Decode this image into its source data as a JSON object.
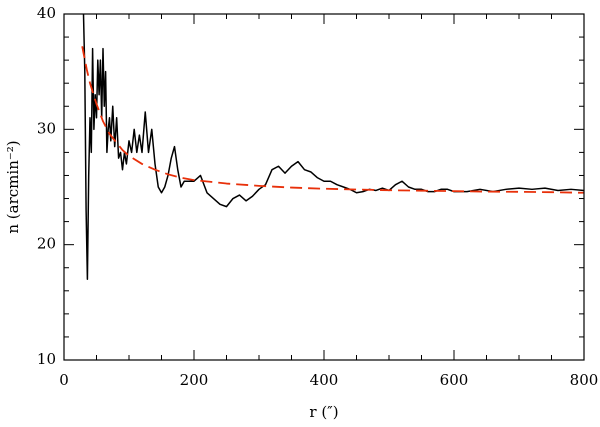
{
  "chart_data": {
    "type": "line",
    "xlabel": "r (″)",
    "ylabel": "n (arcmin⁻²)",
    "xlim": [
      0,
      800
    ],
    "ylim": [
      10,
      40
    ],
    "x_ticks": [
      "0",
      "200",
      "400",
      "600",
      "800"
    ],
    "y_ticks": [
      "10",
      "20",
      "30",
      "40"
    ],
    "grid": false,
    "legend": "none",
    "colors": {
      "data": "#000000",
      "fit": "#e8300a"
    },
    "series": [
      {
        "style": "solid",
        "x": [
          30,
          32,
          34,
          36,
          38,
          40,
          42,
          44,
          46,
          48,
          50,
          52,
          54,
          56,
          58,
          60,
          62,
          64,
          66,
          68,
          70,
          72,
          75,
          78,
          81,
          84,
          87,
          90,
          93,
          96,
          100,
          104,
          108,
          112,
          116,
          120,
          125,
          130,
          135,
          140,
          145,
          150,
          155,
          160,
          165,
          170,
          175,
          180,
          185,
          190,
          200,
          210,
          220,
          230,
          240,
          250,
          260,
          270,
          280,
          290,
          300,
          310,
          320,
          330,
          340,
          350,
          360,
          370,
          380,
          390,
          400,
          410,
          420,
          430,
          440,
          450,
          460,
          470,
          480,
          490,
          500,
          510,
          520,
          530,
          540,
          550,
          560,
          570,
          580,
          590,
          600,
          620,
          640,
          660,
          680,
          700,
          720,
          740,
          760,
          780,
          800
        ],
        "y": [
          40,
          35,
          23,
          17,
          26,
          31,
          28,
          37,
          30,
          33,
          31,
          36,
          33,
          36,
          31,
          37,
          32,
          35,
          28,
          30,
          31,
          29,
          32,
          28.5,
          31,
          27.5,
          28,
          26.5,
          28,
          27,
          29,
          28,
          30,
          28,
          29.5,
          28,
          31.5,
          28,
          30,
          27,
          25,
          24.5,
          25,
          26,
          27.5,
          28.5,
          26.5,
          25,
          25.5,
          25.5,
          25.5,
          26,
          24.5,
          24,
          23.5,
          23.3,
          24,
          24.3,
          23.8,
          24.2,
          24.8,
          25.2,
          26.5,
          26.8,
          26.2,
          26.8,
          27.2,
          26.5,
          26.3,
          25.8,
          25.5,
          25.5,
          25.2,
          25,
          24.8,
          24.5,
          24.6,
          24.8,
          24.7,
          24.9,
          24.7,
          25.2,
          25.5,
          25,
          24.8,
          24.8,
          24.6,
          24.6,
          24.8,
          24.8,
          24.6,
          24.6,
          24.8,
          24.6,
          24.8,
          24.9,
          24.8,
          24.9,
          24.7,
          24.8,
          24.7
        ]
      },
      {
        "style": "dashed",
        "x": [
          28,
          35,
          40,
          50,
          60,
          70,
          80,
          90,
          100,
          120,
          140,
          160,
          180,
          200,
          250,
          300,
          350,
          400,
          450,
          500,
          550,
          600,
          650,
          700,
          750,
          800
        ],
        "y": [
          37.2,
          35.2,
          34,
          32.2,
          30.7,
          29.6,
          28.9,
          28.2,
          27.7,
          27,
          26.5,
          26.1,
          25.8,
          25.6,
          25.3,
          25.1,
          24.95,
          24.85,
          24.78,
          24.72,
          24.68,
          24.64,
          24.6,
          24.58,
          24.55,
          24.5
        ]
      }
    ]
  }
}
